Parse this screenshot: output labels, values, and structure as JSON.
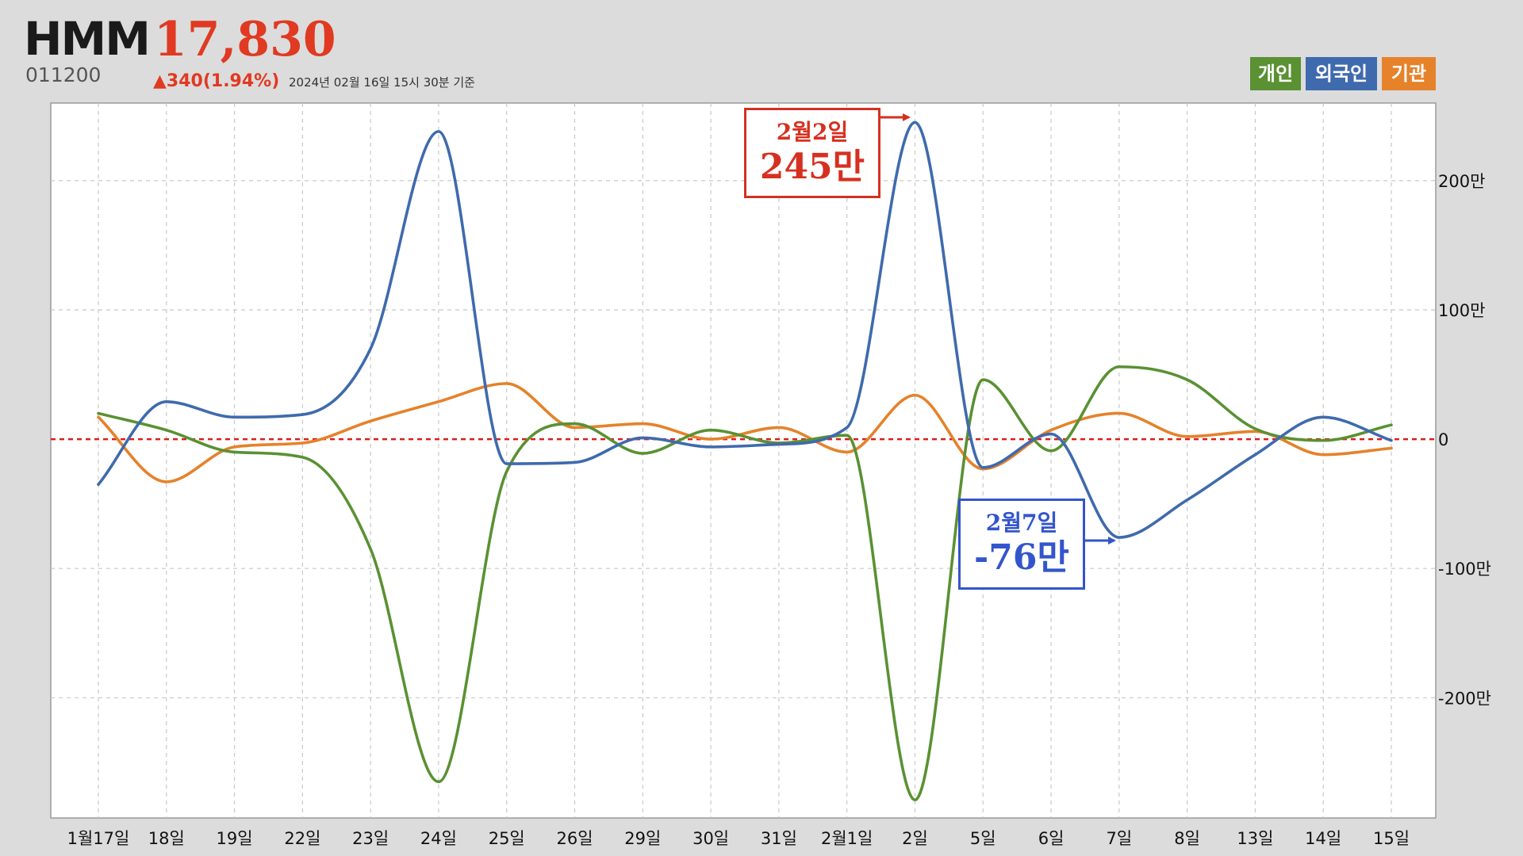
{
  "header": {
    "name": "HMM",
    "price": "17,830",
    "code": "011200",
    "change": "▲340(1.94%)",
    "date_note": "2024년 02월 16일 15시 30분 기준"
  },
  "legend": [
    {
      "label": "개인",
      "color": "#5a9133"
    },
    {
      "label": "외국인",
      "color": "#3f6aad"
    },
    {
      "label": "기관",
      "color": "#e5822a"
    }
  ],
  "colors": {
    "up": "#e03a22",
    "zero_line": "#e01b1b",
    "callout_red": "#d63020",
    "callout_blue": "#3355cc"
  },
  "annotations": [
    {
      "date": "2월2일",
      "value": "245만",
      "color": "#d63020"
    },
    {
      "date": "2월7일",
      "value": "-76만",
      "color": "#3355cc"
    }
  ],
  "chart_data": {
    "type": "line",
    "categories": [
      "1월17일",
      "18일",
      "19일",
      "22일",
      "23일",
      "24일",
      "25일",
      "26일",
      "29일",
      "30일",
      "31일",
      "2월1일",
      "2일",
      "5일",
      "6일",
      "7일",
      "8일",
      "13일",
      "14일",
      "15일"
    ],
    "y_tick_labels": [
      "200만",
      "100만",
      "0",
      "-100만",
      "-200만"
    ],
    "ylim": [
      -293,
      260
    ],
    "grid": true,
    "legend_position": "top-right",
    "series": [
      {
        "name": "개인",
        "color": "#5a9133",
        "values": [
          20,
          7,
          -10,
          -14,
          -85,
          -265,
          -25,
          12,
          -11,
          7,
          -3,
          3,
          -279,
          46,
          -9,
          56,
          46,
          8,
          -1,
          11
        ]
      },
      {
        "name": "외국인",
        "color": "#3f6aad",
        "values": [
          -35,
          29,
          17,
          19,
          70,
          238,
          -19,
          -18,
          1,
          -6,
          -4,
          9,
          245,
          -22,
          4,
          -76,
          -47,
          -12,
          17,
          -1
        ]
      },
      {
        "name": "기관",
        "color": "#e5822a",
        "values": [
          17,
          -33,
          -6,
          -3,
          14,
          29,
          43,
          9,
          12,
          0,
          9,
          -10,
          34,
          -23,
          7,
          20,
          2,
          6,
          -12,
          -7
        ]
      }
    ]
  }
}
